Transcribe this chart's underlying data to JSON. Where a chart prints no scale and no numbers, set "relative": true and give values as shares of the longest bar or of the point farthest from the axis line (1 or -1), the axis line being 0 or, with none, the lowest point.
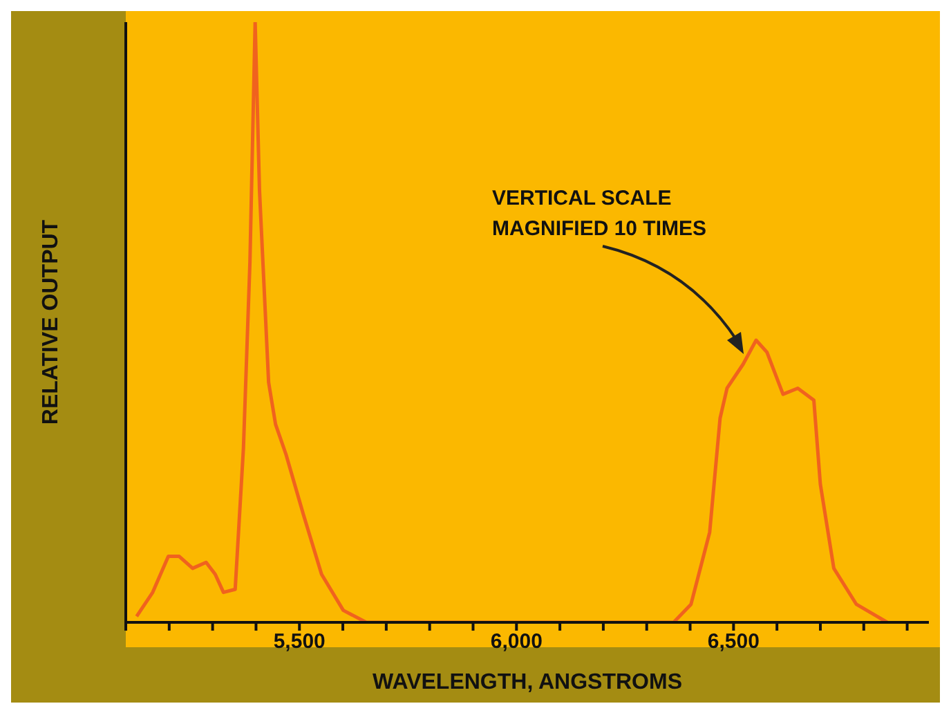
{
  "chart_data": {
    "type": "line",
    "xlabel": "WAVELENGTH, ANGSTROMS",
    "ylabel": "RELATIVE OUTPUT",
    "relative": true,
    "marker": "none",
    "xlim": [
      5100,
      6950
    ],
    "xticks": [
      {
        "value": 5100,
        "label": null
      },
      {
        "value": 5200,
        "label": null
      },
      {
        "value": 5300,
        "label": null
      },
      {
        "value": 5400,
        "label": null
      },
      {
        "value": 5500,
        "label": "5,500"
      },
      {
        "value": 5600,
        "label": null
      },
      {
        "value": 5700,
        "label": null
      },
      {
        "value": 5800,
        "label": null
      },
      {
        "value": 5900,
        "label": null
      },
      {
        "value": 6000,
        "label": "6,000"
      },
      {
        "value": 6100,
        "label": null
      },
      {
        "value": 6200,
        "label": null
      },
      {
        "value": 6300,
        "label": null
      },
      {
        "value": 6400,
        "label": null
      },
      {
        "value": 6500,
        "label": "6,500"
      },
      {
        "value": 6600,
        "label": null
      },
      {
        "value": 6700,
        "label": null
      },
      {
        "value": 6800,
        "label": null
      },
      {
        "value": 6900,
        "label": null
      }
    ],
    "annotations": [
      "VERTICAL SCALE MAGNIFIED 10 TIMES"
    ],
    "series": [
      {
        "color": "#f0621e",
        "x": [
          5125,
          5162,
          5198,
          5223,
          5254,
          5285,
          5306,
          5325,
          5352,
          5371,
          5386,
          5398,
          5408,
          5429,
          5445,
          5469,
          5509,
          5551,
          5601,
          5654,
          6000,
          6362,
          6402,
          6445,
          6469,
          6485,
          6522,
          6552,
          6577,
          6614,
          6648,
          6685,
          6700,
          6731,
          6783,
          6854
        ],
        "values": [
          0.01,
          0.05,
          0.11,
          0.11,
          0.09,
          0.1,
          0.08,
          0.05,
          0.055,
          0.29,
          0.6,
          1,
          0.72,
          0.4,
          0.33,
          0.28,
          0.18,
          0.08,
          0.02,
          0,
          0,
          0,
          0.03,
          0.15,
          0.34,
          0.39,
          0.43,
          0.47,
          0.45,
          0.38,
          0.39,
          0.37,
          0.23,
          0.09,
          0.03,
          0
        ]
      }
    ]
  }
}
